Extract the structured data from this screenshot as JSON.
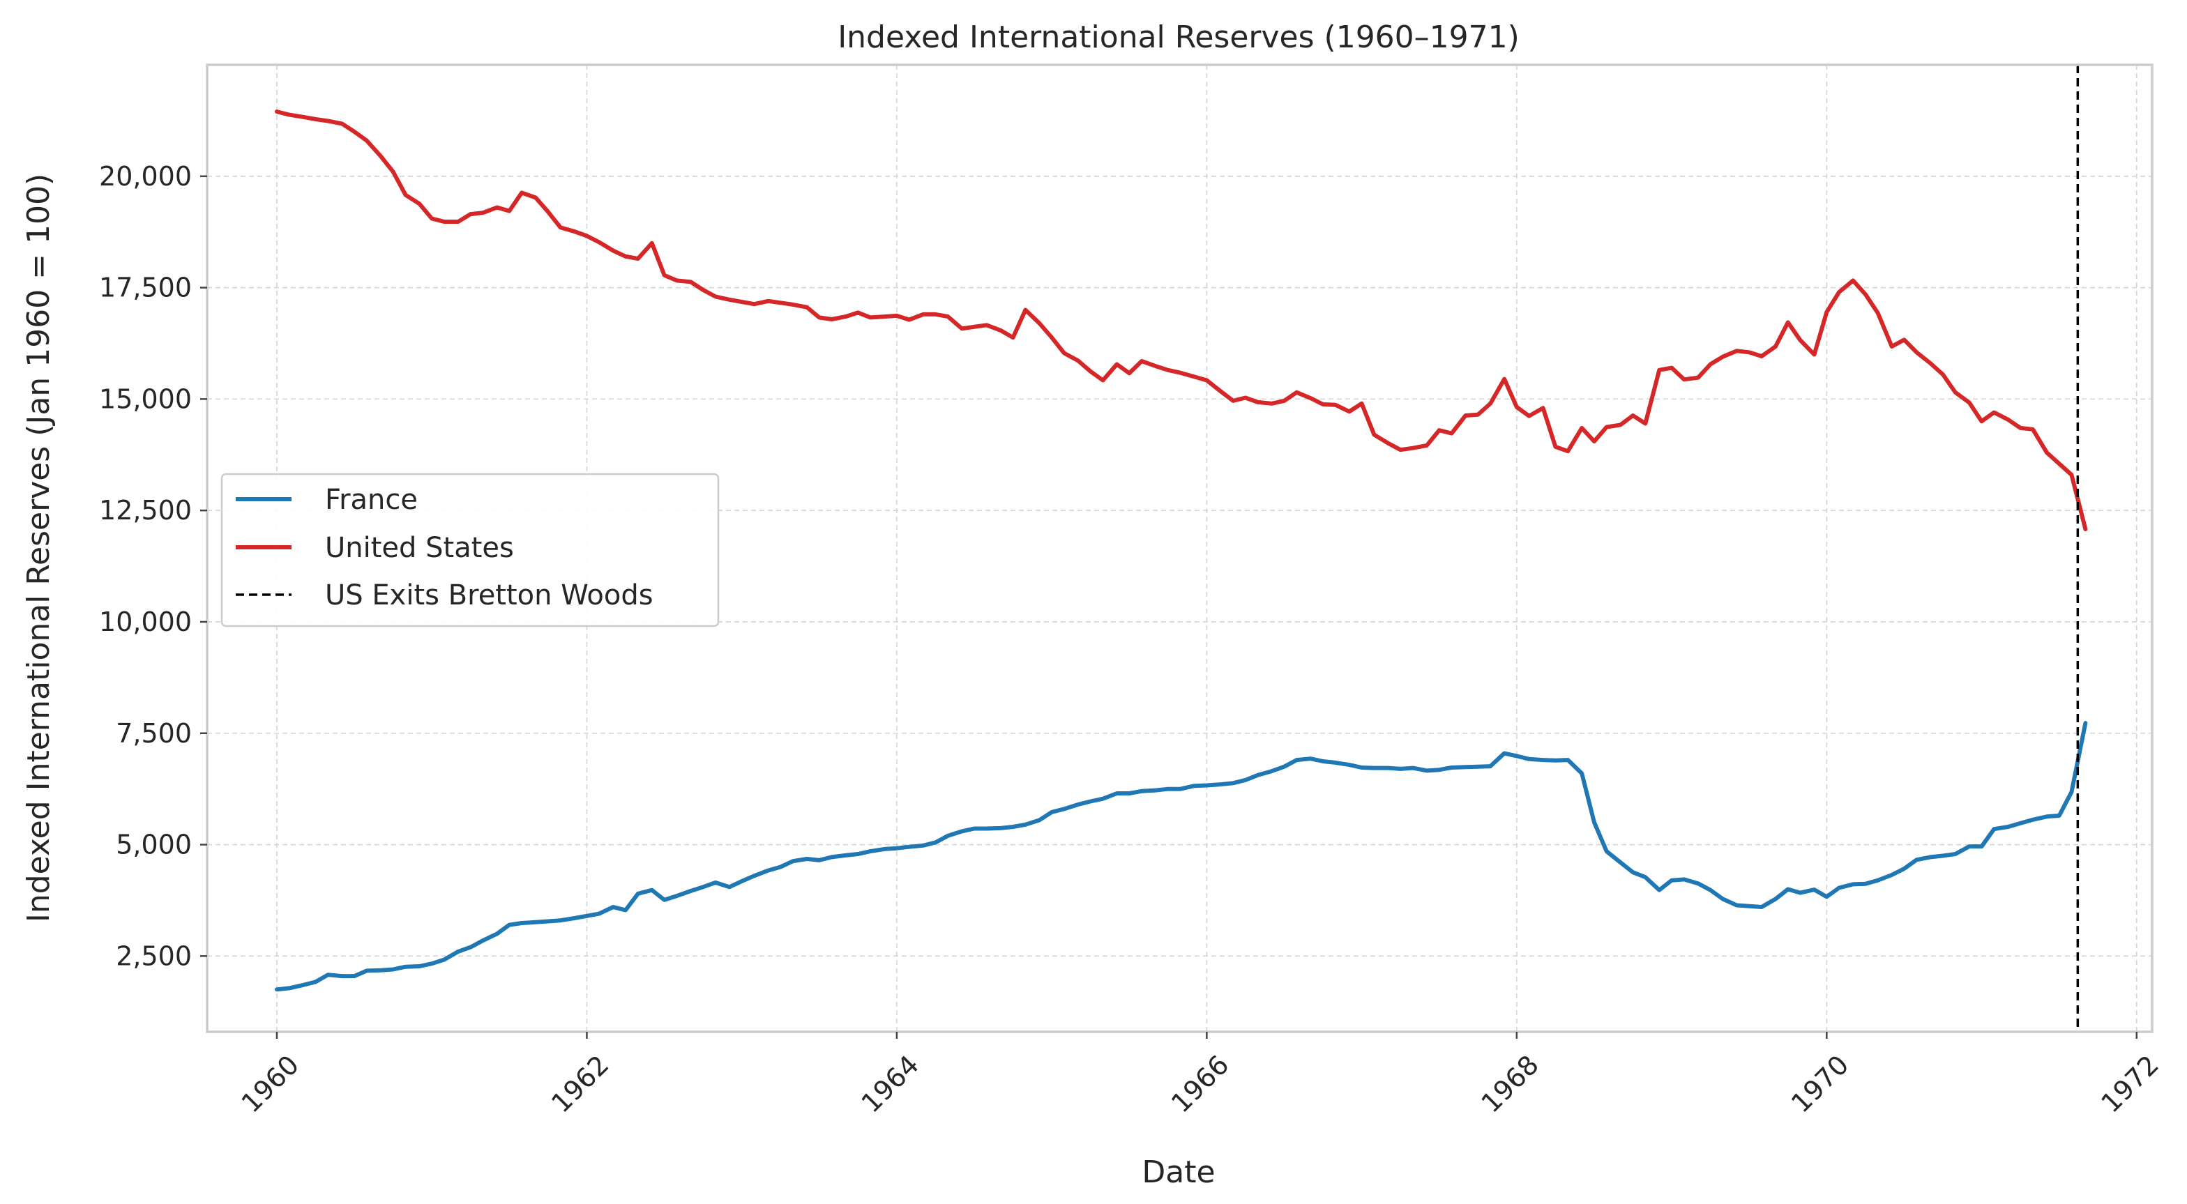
{
  "chart_data": {
    "type": "line",
    "title": "Indexed International Reserves (1960–1971)",
    "xlabel": "Date",
    "ylabel": "Indexed International Reserves (Jan 1960 = 100)",
    "xlim": [
      1959.55,
      1972.1
    ],
    "ylim": [
      800,
      22500
    ],
    "x_ticks": [
      1960,
      1962,
      1964,
      1966,
      1968,
      1970,
      1972
    ],
    "x_tick_labels": [
      "1960",
      "1962",
      "1964",
      "1966",
      "1968",
      "1970",
      "1972"
    ],
    "y_ticks": [
      2500,
      5000,
      7500,
      10000,
      12500,
      15000,
      17500,
      20000
    ],
    "y_tick_labels": [
      "2,500",
      "5,000",
      "7,500",
      "10,000",
      "12,500",
      "15,000",
      "17,500",
      "20,000"
    ],
    "grid": true,
    "legend_position": "center-left",
    "series": [
      {
        "name": "France",
        "color": "#1f77b4",
        "points": [
          [
            1960.0,
            1750
          ],
          [
            1960.08,
            1780
          ],
          [
            1960.17,
            1850
          ],
          [
            1960.25,
            1920
          ],
          [
            1960.33,
            2080
          ],
          [
            1960.42,
            2050
          ],
          [
            1960.5,
            2050
          ],
          [
            1960.58,
            2170
          ],
          [
            1960.67,
            2180
          ],
          [
            1960.75,
            2200
          ],
          [
            1960.83,
            2260
          ],
          [
            1960.92,
            2270
          ],
          [
            1961.0,
            2330
          ],
          [
            1961.08,
            2420
          ],
          [
            1961.17,
            2600
          ],
          [
            1961.25,
            2700
          ],
          [
            1961.33,
            2850
          ],
          [
            1961.42,
            3000
          ],
          [
            1961.5,
            3200
          ],
          [
            1961.58,
            3240
          ],
          [
            1961.67,
            3260
          ],
          [
            1961.75,
            3280
          ],
          [
            1961.83,
            3300
          ],
          [
            1961.92,
            3350
          ],
          [
            1962.0,
            3400
          ],
          [
            1962.08,
            3450
          ],
          [
            1962.17,
            3600
          ],
          [
            1962.25,
            3530
          ],
          [
            1962.33,
            3900
          ],
          [
            1962.42,
            3980
          ],
          [
            1962.5,
            3760
          ],
          [
            1962.58,
            3850
          ],
          [
            1962.67,
            3960
          ],
          [
            1962.75,
            4050
          ],
          [
            1962.83,
            4150
          ],
          [
            1962.92,
            4050
          ],
          [
            1963.0,
            4180
          ],
          [
            1963.08,
            4300
          ],
          [
            1963.17,
            4420
          ],
          [
            1963.25,
            4500
          ],
          [
            1963.33,
            4630
          ],
          [
            1963.42,
            4680
          ],
          [
            1963.5,
            4650
          ],
          [
            1963.58,
            4720
          ],
          [
            1963.67,
            4760
          ],
          [
            1963.75,
            4790
          ],
          [
            1963.83,
            4850
          ],
          [
            1963.92,
            4900
          ],
          [
            1964.0,
            4920
          ],
          [
            1964.08,
            4950
          ],
          [
            1964.17,
            4980
          ],
          [
            1964.25,
            5050
          ],
          [
            1964.33,
            5200
          ],
          [
            1964.42,
            5300
          ],
          [
            1964.5,
            5360
          ],
          [
            1964.58,
            5360
          ],
          [
            1964.67,
            5370
          ],
          [
            1964.75,
            5400
          ],
          [
            1964.83,
            5450
          ],
          [
            1964.92,
            5550
          ],
          [
            1965.0,
            5730
          ],
          [
            1965.08,
            5800
          ],
          [
            1965.17,
            5900
          ],
          [
            1965.25,
            5970
          ],
          [
            1965.33,
            6030
          ],
          [
            1965.42,
            6150
          ],
          [
            1965.5,
            6150
          ],
          [
            1965.58,
            6200
          ],
          [
            1965.67,
            6220
          ],
          [
            1965.75,
            6250
          ],
          [
            1965.83,
            6250
          ],
          [
            1965.92,
            6320
          ],
          [
            1966.0,
            6330
          ],
          [
            1966.08,
            6350
          ],
          [
            1966.17,
            6380
          ],
          [
            1966.25,
            6450
          ],
          [
            1966.33,
            6560
          ],
          [
            1966.42,
            6650
          ],
          [
            1966.5,
            6750
          ],
          [
            1966.58,
            6900
          ],
          [
            1966.67,
            6930
          ],
          [
            1966.75,
            6870
          ],
          [
            1966.83,
            6840
          ],
          [
            1966.92,
            6790
          ],
          [
            1967.0,
            6730
          ],
          [
            1967.08,
            6720
          ],
          [
            1967.17,
            6720
          ],
          [
            1967.25,
            6700
          ],
          [
            1967.33,
            6720
          ],
          [
            1967.42,
            6660
          ],
          [
            1967.5,
            6680
          ],
          [
            1967.58,
            6730
          ],
          [
            1967.67,
            6740
          ],
          [
            1967.75,
            6750
          ],
          [
            1967.83,
            6760
          ],
          [
            1967.92,
            7050
          ],
          [
            1968.0,
            6990
          ],
          [
            1968.08,
            6920
          ],
          [
            1968.17,
            6900
          ],
          [
            1968.25,
            6890
          ],
          [
            1968.33,
            6900
          ],
          [
            1968.42,
            6600
          ],
          [
            1968.5,
            5500
          ],
          [
            1968.58,
            4850
          ],
          [
            1968.67,
            4600
          ],
          [
            1968.75,
            4380
          ],
          [
            1968.83,
            4270
          ],
          [
            1968.92,
            3980
          ],
          [
            1969.0,
            4200
          ],
          [
            1969.08,
            4220
          ],
          [
            1969.17,
            4130
          ],
          [
            1969.25,
            3980
          ],
          [
            1969.33,
            3780
          ],
          [
            1969.42,
            3640
          ],
          [
            1969.5,
            3620
          ],
          [
            1969.58,
            3600
          ],
          [
            1969.67,
            3780
          ],
          [
            1969.75,
            4000
          ],
          [
            1969.83,
            3920
          ],
          [
            1969.92,
            3990
          ],
          [
            1970.0,
            3830
          ],
          [
            1970.08,
            4030
          ],
          [
            1970.17,
            4110
          ],
          [
            1970.25,
            4120
          ],
          [
            1970.33,
            4200
          ],
          [
            1970.42,
            4320
          ],
          [
            1970.5,
            4460
          ],
          [
            1970.58,
            4660
          ],
          [
            1970.67,
            4720
          ],
          [
            1970.75,
            4750
          ],
          [
            1970.83,
            4790
          ],
          [
            1970.92,
            4960
          ],
          [
            1971.0,
            4960
          ],
          [
            1971.08,
            5350
          ],
          [
            1971.17,
            5400
          ],
          [
            1971.25,
            5480
          ],
          [
            1971.33,
            5560
          ],
          [
            1971.42,
            5630
          ],
          [
            1971.5,
            5650
          ],
          [
            1971.58,
            6180
          ],
          [
            1971.67,
            7730
          ]
        ]
      },
      {
        "name": "United States",
        "color": "#d62728",
        "points": [
          [
            1960.0,
            21450
          ],
          [
            1960.08,
            21380
          ],
          [
            1960.17,
            21330
          ],
          [
            1960.25,
            21280
          ],
          [
            1960.33,
            21240
          ],
          [
            1960.42,
            21180
          ],
          [
            1960.5,
            21000
          ],
          [
            1960.58,
            20800
          ],
          [
            1960.67,
            20450
          ],
          [
            1960.75,
            20100
          ],
          [
            1960.83,
            19580
          ],
          [
            1960.92,
            19380
          ],
          [
            1961.0,
            19050
          ],
          [
            1961.08,
            18980
          ],
          [
            1961.17,
            18980
          ],
          [
            1961.25,
            19150
          ],
          [
            1961.33,
            19180
          ],
          [
            1961.42,
            19300
          ],
          [
            1961.5,
            19220
          ],
          [
            1961.58,
            19630
          ],
          [
            1961.67,
            19520
          ],
          [
            1961.75,
            19200
          ],
          [
            1961.83,
            18850
          ],
          [
            1961.92,
            18760
          ],
          [
            1962.0,
            18660
          ],
          [
            1962.08,
            18520
          ],
          [
            1962.17,
            18330
          ],
          [
            1962.25,
            18200
          ],
          [
            1962.33,
            18150
          ],
          [
            1962.42,
            18500
          ],
          [
            1962.5,
            17780
          ],
          [
            1962.58,
            17660
          ],
          [
            1962.67,
            17630
          ],
          [
            1962.75,
            17450
          ],
          [
            1962.83,
            17300
          ],
          [
            1962.92,
            17230
          ],
          [
            1963.0,
            17180
          ],
          [
            1963.08,
            17130
          ],
          [
            1963.17,
            17200
          ],
          [
            1963.25,
            17160
          ],
          [
            1963.33,
            17120
          ],
          [
            1963.42,
            17060
          ],
          [
            1963.5,
            16830
          ],
          [
            1963.58,
            16790
          ],
          [
            1963.67,
            16850
          ],
          [
            1963.75,
            16940
          ],
          [
            1963.83,
            16830
          ],
          [
            1963.92,
            16850
          ],
          [
            1964.0,
            16870
          ],
          [
            1964.08,
            16780
          ],
          [
            1964.17,
            16900
          ],
          [
            1964.25,
            16900
          ],
          [
            1964.33,
            16850
          ],
          [
            1964.42,
            16580
          ],
          [
            1964.5,
            16620
          ],
          [
            1964.58,
            16660
          ],
          [
            1964.67,
            16540
          ],
          [
            1964.75,
            16380
          ],
          [
            1964.83,
            17000
          ],
          [
            1964.92,
            16700
          ],
          [
            1965.0,
            16380
          ],
          [
            1965.08,
            16030
          ],
          [
            1965.17,
            15860
          ],
          [
            1965.25,
            15620
          ],
          [
            1965.33,
            15420
          ],
          [
            1965.42,
            15780
          ],
          [
            1965.5,
            15580
          ],
          [
            1965.58,
            15850
          ],
          [
            1965.67,
            15740
          ],
          [
            1965.75,
            15650
          ],
          [
            1965.83,
            15590
          ],
          [
            1965.92,
            15500
          ],
          [
            1966.0,
            15420
          ],
          [
            1966.08,
            15200
          ],
          [
            1966.17,
            14960
          ],
          [
            1966.25,
            15030
          ],
          [
            1966.33,
            14930
          ],
          [
            1966.42,
            14900
          ],
          [
            1966.5,
            14960
          ],
          [
            1966.58,
            15150
          ],
          [
            1966.67,
            15020
          ],
          [
            1966.75,
            14880
          ],
          [
            1966.83,
            14870
          ],
          [
            1966.92,
            14720
          ],
          [
            1967.0,
            14900
          ],
          [
            1967.08,
            14200
          ],
          [
            1967.17,
            14010
          ],
          [
            1967.25,
            13860
          ],
          [
            1967.33,
            13900
          ],
          [
            1967.42,
            13960
          ],
          [
            1967.5,
            14300
          ],
          [
            1967.58,
            14230
          ],
          [
            1967.67,
            14630
          ],
          [
            1967.75,
            14650
          ],
          [
            1967.83,
            14900
          ],
          [
            1967.92,
            15450
          ],
          [
            1968.0,
            14820
          ],
          [
            1968.08,
            14620
          ],
          [
            1968.17,
            14800
          ],
          [
            1968.25,
            13930
          ],
          [
            1968.33,
            13830
          ],
          [
            1968.42,
            14350
          ],
          [
            1968.5,
            14050
          ],
          [
            1968.58,
            14370
          ],
          [
            1968.67,
            14420
          ],
          [
            1968.75,
            14630
          ],
          [
            1968.83,
            14450
          ],
          [
            1968.92,
            15650
          ],
          [
            1969.0,
            15700
          ],
          [
            1969.08,
            15440
          ],
          [
            1969.17,
            15480
          ],
          [
            1969.25,
            15780
          ],
          [
            1969.33,
            15950
          ],
          [
            1969.42,
            16080
          ],
          [
            1969.5,
            16050
          ],
          [
            1969.58,
            15960
          ],
          [
            1969.67,
            16180
          ],
          [
            1969.75,
            16720
          ],
          [
            1969.83,
            16320
          ],
          [
            1969.92,
            16000
          ],
          [
            1970.0,
            16950
          ],
          [
            1970.08,
            17400
          ],
          [
            1970.17,
            17660
          ],
          [
            1970.25,
            17350
          ],
          [
            1970.33,
            16930
          ],
          [
            1970.42,
            16180
          ],
          [
            1970.5,
            16330
          ],
          [
            1970.58,
            16050
          ],
          [
            1970.67,
            15800
          ],
          [
            1970.75,
            15550
          ],
          [
            1970.83,
            15150
          ],
          [
            1970.92,
            14920
          ],
          [
            1971.0,
            14500
          ],
          [
            1971.08,
            14700
          ],
          [
            1971.17,
            14540
          ],
          [
            1971.25,
            14350
          ],
          [
            1971.33,
            14320
          ],
          [
            1971.42,
            13800
          ],
          [
            1971.5,
            13550
          ],
          [
            1971.58,
            13300
          ],
          [
            1971.67,
            12080
          ]
        ]
      }
    ],
    "event_line": {
      "name": "US Exits Bretton Woods",
      "x": 1971.62,
      "color": "#000000",
      "style": "dashed"
    }
  }
}
